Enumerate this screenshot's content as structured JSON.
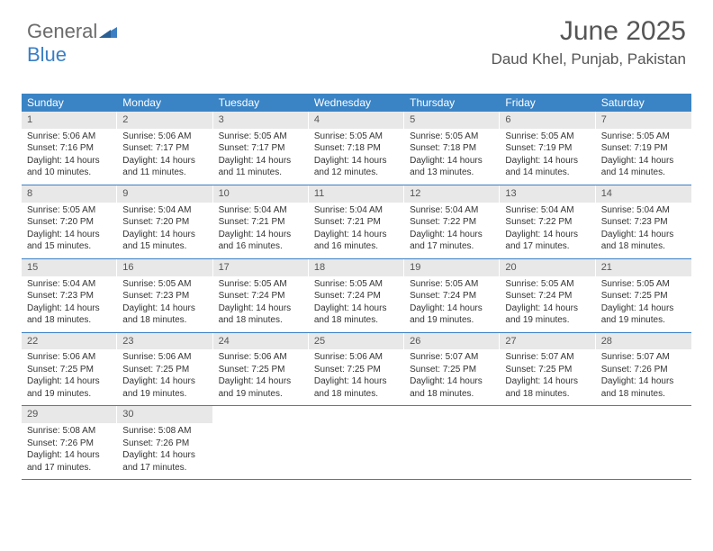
{
  "logo": {
    "text1": "General",
    "text2": "Blue"
  },
  "header": {
    "month": "June 2025",
    "location": "Daud Khel, Punjab, Pakistan"
  },
  "colors": {
    "header_bg": "#3a84c6",
    "header_text": "#ffffff",
    "daynum_bg": "#e8e8e8",
    "row_border": "#3a7fc4",
    "logo_gray": "#6b6b6b",
    "logo_blue": "#3a7fc4"
  },
  "dayNames": [
    "Sunday",
    "Monday",
    "Tuesday",
    "Wednesday",
    "Thursday",
    "Friday",
    "Saturday"
  ],
  "weeks": [
    [
      {
        "n": "1",
        "sr": "Sunrise: 5:06 AM",
        "ss": "Sunset: 7:16 PM",
        "d1": "Daylight: 14 hours",
        "d2": "and 10 minutes."
      },
      {
        "n": "2",
        "sr": "Sunrise: 5:06 AM",
        "ss": "Sunset: 7:17 PM",
        "d1": "Daylight: 14 hours",
        "d2": "and 11 minutes."
      },
      {
        "n": "3",
        "sr": "Sunrise: 5:05 AM",
        "ss": "Sunset: 7:17 PM",
        "d1": "Daylight: 14 hours",
        "d2": "and 11 minutes."
      },
      {
        "n": "4",
        "sr": "Sunrise: 5:05 AM",
        "ss": "Sunset: 7:18 PM",
        "d1": "Daylight: 14 hours",
        "d2": "and 12 minutes."
      },
      {
        "n": "5",
        "sr": "Sunrise: 5:05 AM",
        "ss": "Sunset: 7:18 PM",
        "d1": "Daylight: 14 hours",
        "d2": "and 13 minutes."
      },
      {
        "n": "6",
        "sr": "Sunrise: 5:05 AM",
        "ss": "Sunset: 7:19 PM",
        "d1": "Daylight: 14 hours",
        "d2": "and 14 minutes."
      },
      {
        "n": "7",
        "sr": "Sunrise: 5:05 AM",
        "ss": "Sunset: 7:19 PM",
        "d1": "Daylight: 14 hours",
        "d2": "and 14 minutes."
      }
    ],
    [
      {
        "n": "8",
        "sr": "Sunrise: 5:05 AM",
        "ss": "Sunset: 7:20 PM",
        "d1": "Daylight: 14 hours",
        "d2": "and 15 minutes."
      },
      {
        "n": "9",
        "sr": "Sunrise: 5:04 AM",
        "ss": "Sunset: 7:20 PM",
        "d1": "Daylight: 14 hours",
        "d2": "and 15 minutes."
      },
      {
        "n": "10",
        "sr": "Sunrise: 5:04 AM",
        "ss": "Sunset: 7:21 PM",
        "d1": "Daylight: 14 hours",
        "d2": "and 16 minutes."
      },
      {
        "n": "11",
        "sr": "Sunrise: 5:04 AM",
        "ss": "Sunset: 7:21 PM",
        "d1": "Daylight: 14 hours",
        "d2": "and 16 minutes."
      },
      {
        "n": "12",
        "sr": "Sunrise: 5:04 AM",
        "ss": "Sunset: 7:22 PM",
        "d1": "Daylight: 14 hours",
        "d2": "and 17 minutes."
      },
      {
        "n": "13",
        "sr": "Sunrise: 5:04 AM",
        "ss": "Sunset: 7:22 PM",
        "d1": "Daylight: 14 hours",
        "d2": "and 17 minutes."
      },
      {
        "n": "14",
        "sr": "Sunrise: 5:04 AM",
        "ss": "Sunset: 7:23 PM",
        "d1": "Daylight: 14 hours",
        "d2": "and 18 minutes."
      }
    ],
    [
      {
        "n": "15",
        "sr": "Sunrise: 5:04 AM",
        "ss": "Sunset: 7:23 PM",
        "d1": "Daylight: 14 hours",
        "d2": "and 18 minutes."
      },
      {
        "n": "16",
        "sr": "Sunrise: 5:05 AM",
        "ss": "Sunset: 7:23 PM",
        "d1": "Daylight: 14 hours",
        "d2": "and 18 minutes."
      },
      {
        "n": "17",
        "sr": "Sunrise: 5:05 AM",
        "ss": "Sunset: 7:24 PM",
        "d1": "Daylight: 14 hours",
        "d2": "and 18 minutes."
      },
      {
        "n": "18",
        "sr": "Sunrise: 5:05 AM",
        "ss": "Sunset: 7:24 PM",
        "d1": "Daylight: 14 hours",
        "d2": "and 18 minutes."
      },
      {
        "n": "19",
        "sr": "Sunrise: 5:05 AM",
        "ss": "Sunset: 7:24 PM",
        "d1": "Daylight: 14 hours",
        "d2": "and 19 minutes."
      },
      {
        "n": "20",
        "sr": "Sunrise: 5:05 AM",
        "ss": "Sunset: 7:24 PM",
        "d1": "Daylight: 14 hours",
        "d2": "and 19 minutes."
      },
      {
        "n": "21",
        "sr": "Sunrise: 5:05 AM",
        "ss": "Sunset: 7:25 PM",
        "d1": "Daylight: 14 hours",
        "d2": "and 19 minutes."
      }
    ],
    [
      {
        "n": "22",
        "sr": "Sunrise: 5:06 AM",
        "ss": "Sunset: 7:25 PM",
        "d1": "Daylight: 14 hours",
        "d2": "and 19 minutes."
      },
      {
        "n": "23",
        "sr": "Sunrise: 5:06 AM",
        "ss": "Sunset: 7:25 PM",
        "d1": "Daylight: 14 hours",
        "d2": "and 19 minutes."
      },
      {
        "n": "24",
        "sr": "Sunrise: 5:06 AM",
        "ss": "Sunset: 7:25 PM",
        "d1": "Daylight: 14 hours",
        "d2": "and 19 minutes."
      },
      {
        "n": "25",
        "sr": "Sunrise: 5:06 AM",
        "ss": "Sunset: 7:25 PM",
        "d1": "Daylight: 14 hours",
        "d2": "and 18 minutes."
      },
      {
        "n": "26",
        "sr": "Sunrise: 5:07 AM",
        "ss": "Sunset: 7:25 PM",
        "d1": "Daylight: 14 hours",
        "d2": "and 18 minutes."
      },
      {
        "n": "27",
        "sr": "Sunrise: 5:07 AM",
        "ss": "Sunset: 7:25 PM",
        "d1": "Daylight: 14 hours",
        "d2": "and 18 minutes."
      },
      {
        "n": "28",
        "sr": "Sunrise: 5:07 AM",
        "ss": "Sunset: 7:26 PM",
        "d1": "Daylight: 14 hours",
        "d2": "and 18 minutes."
      }
    ],
    [
      {
        "n": "29",
        "sr": "Sunrise: 5:08 AM",
        "ss": "Sunset: 7:26 PM",
        "d1": "Daylight: 14 hours",
        "d2": "and 17 minutes."
      },
      {
        "n": "30",
        "sr": "Sunrise: 5:08 AM",
        "ss": "Sunset: 7:26 PM",
        "d1": "Daylight: 14 hours",
        "d2": "and 17 minutes."
      },
      {
        "empty": true
      },
      {
        "empty": true
      },
      {
        "empty": true
      },
      {
        "empty": true
      },
      {
        "empty": true
      }
    ]
  ]
}
